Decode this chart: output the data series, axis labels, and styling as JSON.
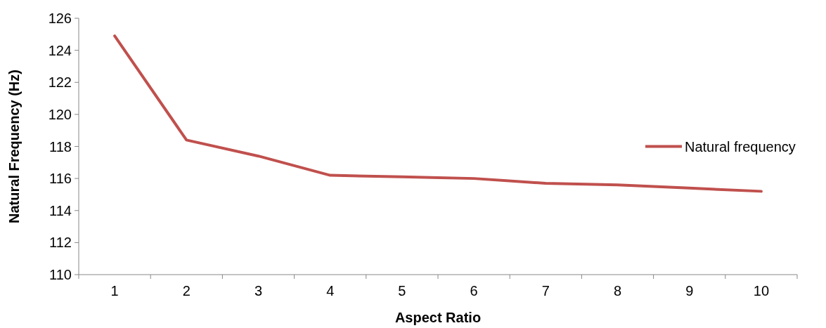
{
  "chart_data": {
    "type": "line",
    "xlabel": "Aspect Ratio",
    "ylabel": "Natural Frequency (Hz)",
    "categories": [
      "1",
      "2",
      "3",
      "4",
      "5",
      "6",
      "7",
      "8",
      "9",
      "10"
    ],
    "series": [
      {
        "name": "Natural frequency",
        "color": "#c0504d",
        "values": [
          124.9,
          118.4,
          117.4,
          116.2,
          116.1,
          116.0,
          115.7,
          115.6,
          115.4,
          115.2
        ]
      }
    ],
    "ylim": [
      110,
      126
    ],
    "yticks": [
      110,
      112,
      114,
      116,
      118,
      120,
      122,
      124,
      126
    ],
    "grid": false,
    "legend": "right",
    "marker": "none",
    "line_style": "solid"
  }
}
